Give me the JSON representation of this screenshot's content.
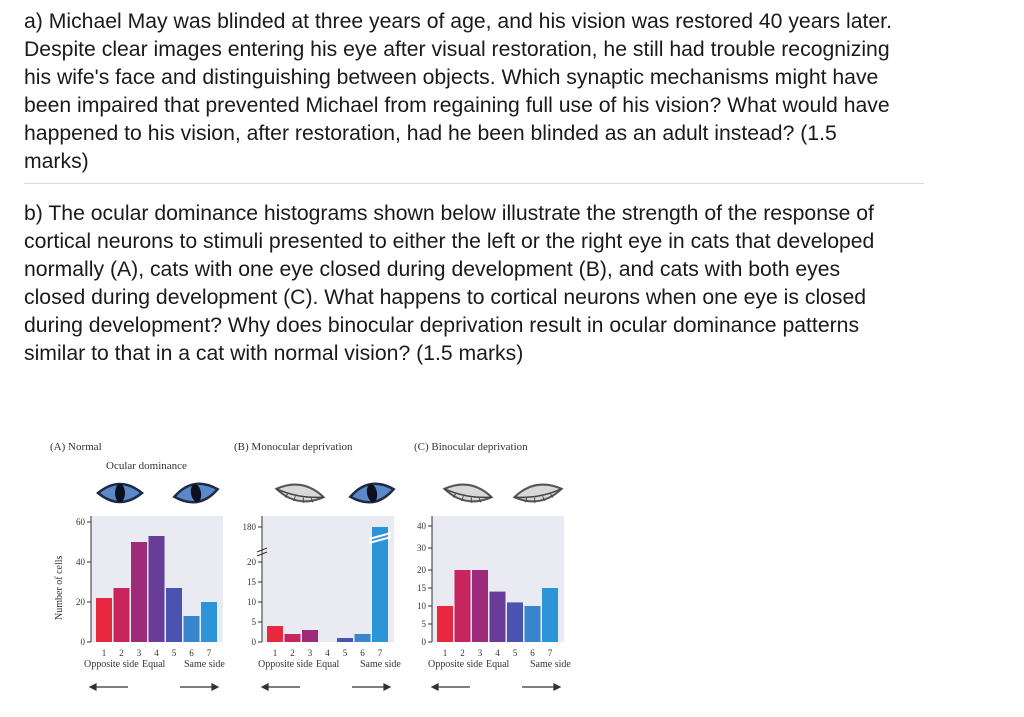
{
  "question_a": "a) Michael May was blinded at three years of age, and his vision was restored 40 years later. Despite clear images entering his eye after visual restoration, he still had trouble recognizing his wife's face and distinguishing between objects. Which synaptic mechanisms might have been impaired that prevented Michael from regaining full use of his vision? What would have happened to his vision, after restoration, had he been blinded as an adult instead? (1.5 marks)",
  "question_b": "b) The ocular dominance histograms shown below illustrate the strength of the response of cortical neurons to stimuli presented to either the left or the right eye in cats that developed normally (A), cats with one eye closed during development (B), and cats with both eyes closed during development (C). What happens to cortical neurons when one eye is closed during development? Why does binocular deprivation result in ocular dominance patterns similar to that in a cat with normal vision? (1.5 marks)",
  "figure": {
    "ylabel": "Number of cells",
    "xlabel_left": "Opposite side",
    "xlabel_mid": "Equal",
    "xlabel_right": "Same side",
    "ocular_dominance_label": "Ocular dominance",
    "colors": [
      "#e8283f",
      "#c8245e",
      "#9e2a7a",
      "#6a3c9a",
      "#4a54b0",
      "#3a86cc",
      "#2b95d8"
    ]
  },
  "chart_data": [
    {
      "type": "bar",
      "title": "(A) Normal",
      "categories": [
        "1",
        "2",
        "3",
        "4",
        "5",
        "6",
        "7"
      ],
      "values": [
        22,
        27,
        50,
        53,
        27,
        13,
        20
      ],
      "yticks": [
        "0",
        "20",
        "40",
        "60"
      ],
      "ylim": [
        0,
        60
      ]
    },
    {
      "type": "bar",
      "title": "(B) Monocular deprivation",
      "categories": [
        "1",
        "2",
        "3",
        "4",
        "5",
        "6",
        "7"
      ],
      "values": [
        4,
        2,
        3,
        0,
        1,
        2,
        180
      ],
      "yticks": [
        "0",
        "5",
        "10",
        "15",
        "20",
        "180"
      ],
      "axis_break": true
    },
    {
      "type": "bar",
      "title": "(C) Binocular deprivation",
      "categories": [
        "1",
        "2",
        "3",
        "4",
        "5",
        "6",
        "7"
      ],
      "values": [
        10,
        20,
        20,
        14,
        11,
        10,
        15
      ],
      "yticks": [
        "0",
        "5",
        "10",
        "15",
        "20",
        "30",
        "40"
      ]
    }
  ]
}
